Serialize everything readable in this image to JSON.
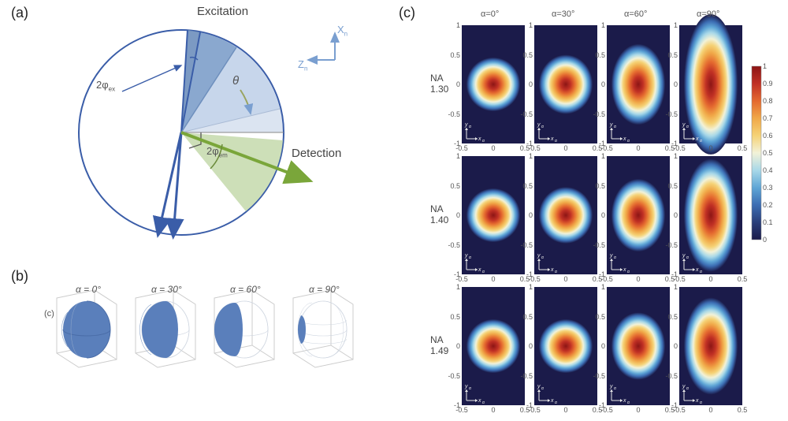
{
  "labels": {
    "a": "(a)",
    "b": "(b)",
    "c": "(c)",
    "c_inner": "(c)"
  },
  "panel_a": {
    "top_label": "Excitation",
    "right_label": "Detection",
    "angle_2phi_ex": "2φ",
    "angle_2phi_ex_sub": "ex",
    "angle_2phi_em": "2φ",
    "angle_2phi_em_sub": "em",
    "theta": "θ",
    "axis_x": "X",
    "axis_x_sub": "n",
    "axis_z": "Z",
    "axis_z_sub": "n",
    "circle_stroke": "#3a5da8",
    "excitation_fill_light": "#c7d6eb",
    "excitation_fill_dark": "#6e8fbd",
    "detection_fill": "#c8dcb0",
    "detection_arrow": "#7aa63a",
    "text_color": "#555555"
  },
  "panel_b": {
    "alphas": [
      "α = 0°",
      "α = 30°",
      "α = 60°",
      "α = 90°"
    ],
    "face_color": "#5a7fbb",
    "wire_color": "#b8c3d1",
    "frame_color": "#cccccc"
  },
  "panel_c": {
    "col_titles": [
      "α=0°",
      "α=30°",
      "α=60°",
      "α=90°"
    ],
    "row_titles": [
      "NA\n1.30",
      "NA\n1.40",
      "NA\n1.49"
    ],
    "x_ticks": [
      "-0.5",
      "0",
      "0.5"
    ],
    "y_ticks": [
      "1",
      "0.5",
      "0",
      "-0.5",
      "-1"
    ],
    "axis_x": "x",
    "axis_x_sub": "α",
    "axis_y": "y",
    "axis_y_sub": "α",
    "bg_color": "#1b1b4a",
    "aspect_ratios_row1": [
      1.0,
      1.1,
      1.5,
      2.6
    ],
    "aspect_ratios_row2": [
      1.0,
      1.05,
      1.35,
      2.1
    ],
    "aspect_ratios_row3": [
      1.0,
      1.0,
      1.25,
      1.8
    ],
    "colorbar_ticks": [
      "1",
      "0.9",
      "0.8",
      "0.7",
      "0.6",
      "0.5",
      "0.4",
      "0.3",
      "0.2",
      "0.1",
      "0"
    ],
    "colormap": [
      "#1b1b4a",
      "#2a3f7a",
      "#3c6db3",
      "#5fa6d6",
      "#a8d8e8",
      "#f2f2d8",
      "#f5d276",
      "#f0a848",
      "#e4692f",
      "#c03024",
      "#8c1515"
    ]
  }
}
